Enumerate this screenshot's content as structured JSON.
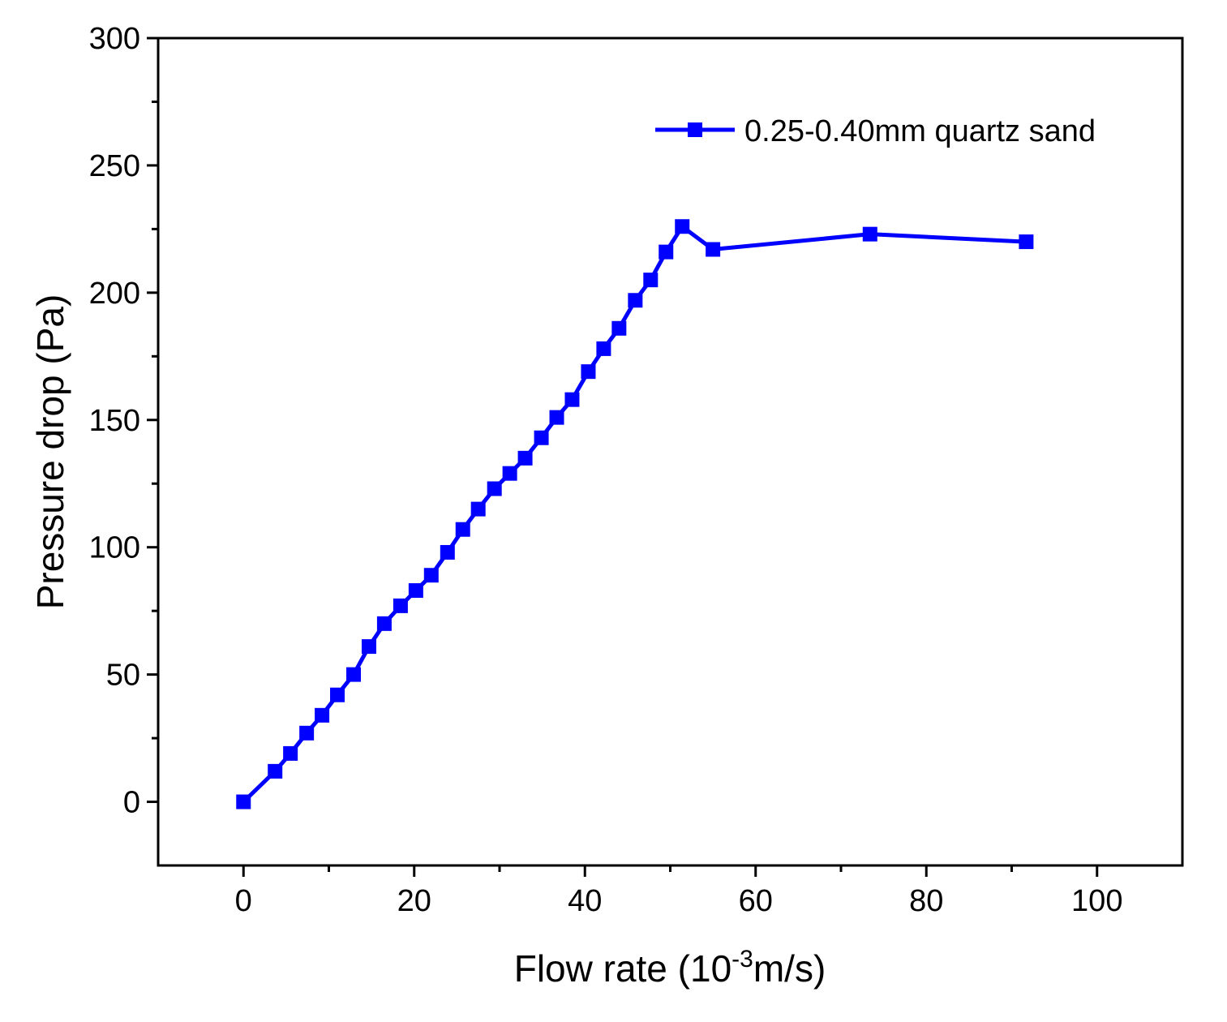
{
  "chart_data": {
    "type": "line",
    "title": "",
    "xlabel": "Flow rate (10",
    "xlabel_sup": "-3",
    "xlabel_tail": "m/s)",
    "ylabel": "Pressure drop (Pa)",
    "xlim": [
      -10,
      110
    ],
    "ylim": [
      -25,
      300
    ],
    "xticks": [
      0,
      20,
      40,
      60,
      80,
      100
    ],
    "xtick_labels": [
      "0",
      "20",
      "40",
      "60",
      "80",
      "100"
    ],
    "yticks": [
      0,
      50,
      100,
      150,
      200,
      250,
      300
    ],
    "ytick_labels": [
      "0",
      "50",
      "100",
      "150",
      "200",
      "250",
      "300"
    ],
    "x_minor_step": 10,
    "y_minor_step": 25,
    "grid": false,
    "legend_position": "top-right",
    "series": [
      {
        "name": "0.25-0.40mm quartz sand",
        "color": "#0000ff",
        "marker": "square",
        "x": [
          0,
          3.7,
          5.5,
          7.4,
          9.2,
          11.0,
          12.9,
          14.7,
          16.5,
          18.4,
          20.2,
          22.0,
          23.9,
          25.7,
          27.5,
          29.4,
          31.2,
          33.0,
          34.9,
          36.7,
          38.5,
          40.4,
          42.2,
          44.0,
          45.9,
          47.7,
          49.5,
          51.4,
          55.0,
          73.4,
          91.7
        ],
        "y": [
          0,
          12,
          19,
          27,
          34,
          42,
          50,
          61,
          70,
          77,
          83,
          89,
          98,
          107,
          115,
          123,
          129,
          135,
          143,
          151,
          158,
          169,
          178,
          186,
          197,
          205,
          216,
          226,
          217,
          223,
          220
        ]
      }
    ]
  }
}
